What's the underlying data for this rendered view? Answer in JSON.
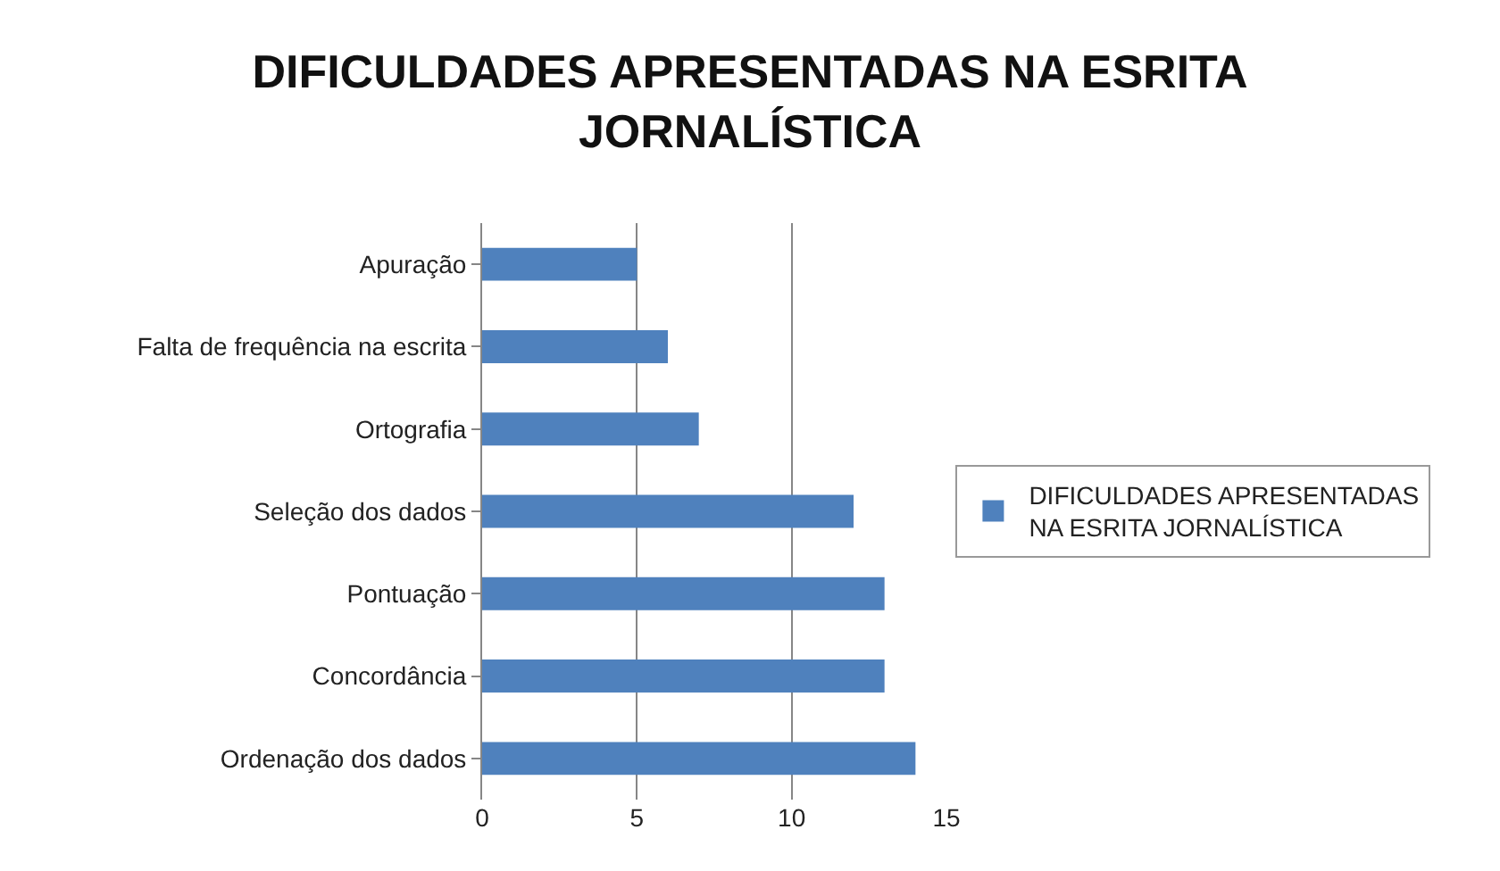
{
  "chart_data": {
    "type": "bar",
    "orientation": "horizontal",
    "title": "DIFICULDADES APRESENTADAS NA ESRITA JORNALÍSTICA",
    "categories": [
      "Apuração",
      "Falta de frequência na escrita",
      "Ortografia",
      "Seleção dos dados",
      "Pontuação",
      "Concordância",
      "Ordenação dos dados"
    ],
    "series": [
      {
        "name": "DIFICULDADES APRESENTADAS NA ESRITA JORNALÍSTICA",
        "color": "#4f81bd",
        "values": [
          5,
          6,
          7,
          12,
          13,
          13,
          14
        ]
      }
    ],
    "xlim": [
      0,
      15
    ],
    "xticks": [
      0,
      5,
      10,
      15
    ],
    "grid": "x",
    "legend": "right"
  }
}
